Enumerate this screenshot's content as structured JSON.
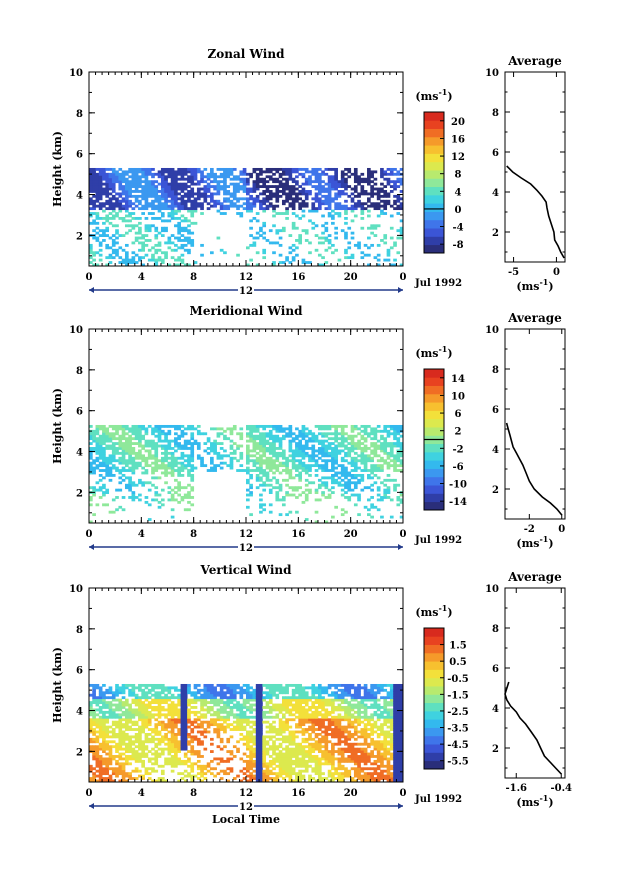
{
  "figure": {
    "xlabel": "Local Time",
    "date_label": "Jul 1992",
    "unit_label": "(ms",
    "unit_superscript": "-1",
    "unit_close": ")"
  },
  "colormap": [
    "#2a2e7a",
    "#2f3ea8",
    "#3b55d6",
    "#3f75ea",
    "#3b98f0",
    "#33b9ee",
    "#3fd2e0",
    "#5fe0c0",
    "#8fe89a",
    "#b8ea6e",
    "#dce94e",
    "#f3e03a",
    "#f7c02f",
    "#f59a2a",
    "#f06d24",
    "#e84220",
    "#d82a1e"
  ],
  "chart_data": [
    {
      "type": "heatmap",
      "id": "zonal",
      "title": "Zonal Wind",
      "ylabel": "Height  (km)",
      "xlabel": "",
      "x_ticks": [
        "0",
        "4",
        "8",
        "12",
        "16",
        "20",
        "0"
      ],
      "x_range": [
        0,
        24
      ],
      "y_ticks": [
        "2",
        "4",
        "6",
        "8",
        "10"
      ],
      "y_range": [
        0.5,
        10
      ],
      "data_height_range": [
        0.5,
        5.3
      ],
      "day_marker": "12",
      "colorbar": {
        "ticks": [
          "20",
          "16",
          "12",
          "8",
          "4",
          "0",
          "-4",
          "-8"
        ],
        "range": [
          -10,
          22
        ],
        "zero_line": 0
      },
      "profile": {
        "title": "Average",
        "x_ticks": [
          "-5",
          "0"
        ],
        "x_range": [
          -6,
          1
        ],
        "y_ticks": [
          "2",
          "4",
          "6",
          "8",
          "10"
        ],
        "heights": [
          0.7,
          1.0,
          1.3,
          1.6,
          2.0,
          2.4,
          2.8,
          3.2,
          3.5,
          3.8,
          4.1,
          4.4,
          4.7,
          5.0,
          5.3
        ],
        "values": [
          0.9,
          0.5,
          0.2,
          -0.2,
          -0.3,
          -0.6,
          -0.9,
          -1.1,
          -1.2,
          -1.7,
          -2.3,
          -3.0,
          -4.1,
          -5.1,
          -5.8
        ]
      }
    },
    {
      "type": "heatmap",
      "id": "meridional",
      "title": "Meridional Wind",
      "ylabel": "Height  (km)",
      "xlabel": "",
      "x_ticks": [
        "0",
        "4",
        "8",
        "12",
        "16",
        "20",
        "0"
      ],
      "x_range": [
        0,
        24
      ],
      "y_ticks": [
        "2",
        "4",
        "6",
        "8",
        "10"
      ],
      "y_range": [
        0.5,
        10
      ],
      "data_height_range": [
        0.5,
        5.3
      ],
      "day_marker": "12",
      "colorbar": {
        "ticks": [
          "14",
          "10",
          "6",
          "2",
          "-2",
          "-6",
          "-10",
          "-14"
        ],
        "range": [
          -16,
          16
        ],
        "zero_line": 0
      },
      "profile": {
        "title": "Average",
        "x_ticks": [
          "-2",
          "0"
        ],
        "x_range": [
          -3.5,
          0.2
        ],
        "y_ticks": [
          "2",
          "4",
          "6",
          "8",
          "10"
        ],
        "heights": [
          0.7,
          1.0,
          1.3,
          1.6,
          2.0,
          2.4,
          2.8,
          3.2,
          3.5,
          3.8,
          4.1,
          4.4,
          4.7,
          5.0,
          5.3
        ],
        "values": [
          0.0,
          -0.3,
          -0.7,
          -1.2,
          -1.7,
          -2.0,
          -2.2,
          -2.4,
          -2.6,
          -2.8,
          -3.0,
          -3.1,
          -3.2,
          -3.3,
          -3.4
        ]
      }
    },
    {
      "type": "heatmap",
      "id": "vertical",
      "title": "Vertical Wind",
      "ylabel": "Height  (km)",
      "xlabel": "Local Time",
      "x_ticks": [
        "0",
        "4",
        "8",
        "12",
        "16",
        "20",
        "0"
      ],
      "x_range": [
        0,
        24
      ],
      "y_ticks": [
        "2",
        "4",
        "6",
        "8",
        "10"
      ],
      "y_range": [
        0.5,
        10
      ],
      "data_height_range": [
        0.5,
        5.3
      ],
      "day_marker": "12",
      "colorbar": {
        "ticks": [
          "1.5",
          "0.5",
          "-0.5",
          "-1.5",
          "-2.5",
          "-3.5",
          "-4.5",
          "-5.5"
        ],
        "range": [
          -6,
          2.5
        ],
        "zero_line": null
      },
      "profile": {
        "title": "Average",
        "x_ticks": [
          "-1.6",
          "-0.4"
        ],
        "x_range": [
          -1.9,
          -0.3
        ],
        "y_ticks": [
          "2",
          "4",
          "6",
          "8",
          "10"
        ],
        "heights": [
          0.7,
          1.0,
          1.3,
          1.6,
          2.0,
          2.4,
          2.8,
          3.2,
          3.5,
          3.8,
          4.1,
          4.4,
          4.7,
          5.0,
          5.3
        ],
        "values": [
          -0.4,
          -0.55,
          -0.7,
          -0.85,
          -0.95,
          -1.05,
          -1.2,
          -1.35,
          -1.5,
          -1.6,
          -1.75,
          -1.85,
          -1.9,
          -1.85,
          -1.8
        ]
      }
    }
  ]
}
